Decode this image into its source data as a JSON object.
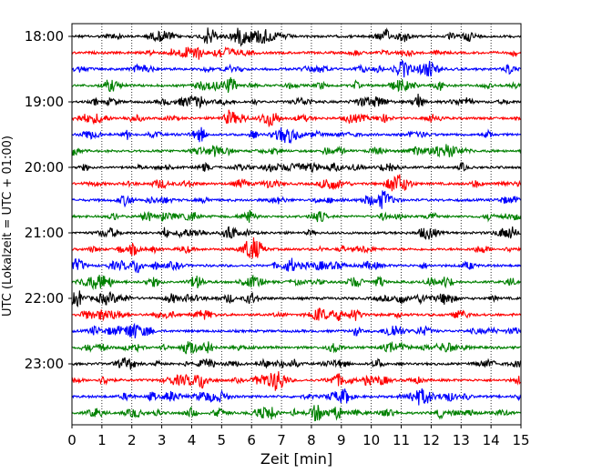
{
  "chart_data": {
    "type": "line",
    "xlabel": "Zeit  [min]",
    "ylabel": "UTC (Lokalzeit = UTC + 01:00)",
    "xlim": [
      0,
      15
    ],
    "x_ticks": [
      0,
      1,
      2,
      3,
      4,
      5,
      6,
      7,
      8,
      9,
      10,
      11,
      12,
      13,
      14,
      15
    ],
    "x_tick_labels": [
      "0",
      "1",
      "2",
      "3",
      "4",
      "5",
      "6",
      "7",
      "8",
      "9",
      "10",
      "11",
      "12",
      "13",
      "14",
      "15"
    ],
    "y_tick_labels": [
      "18:00",
      "19:00",
      "20:00",
      "21:00",
      "22:00",
      "23:00"
    ],
    "trace_interval_min": 15,
    "trace_start": "18:00",
    "trace_count": 24,
    "trace_colors": [
      "#000000",
      "#ff0000",
      "#0000ff",
      "#008000"
    ],
    "vertical_grid": true,
    "grid_style": "dotted"
  }
}
